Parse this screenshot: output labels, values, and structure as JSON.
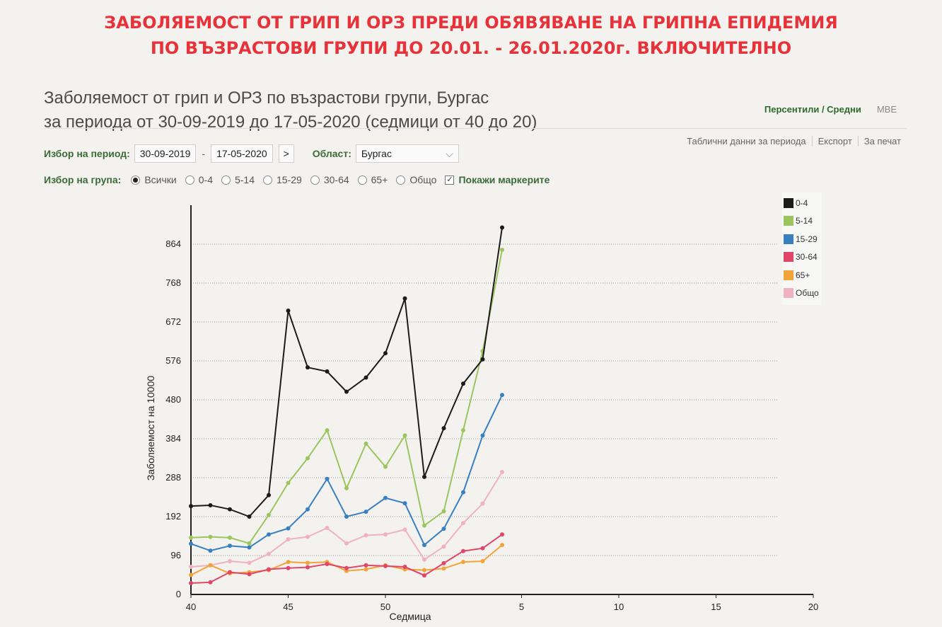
{
  "banner": {
    "line1": "ЗАБОЛЯЕМОСТ ОТ ГРИП И ОРЗ ПРЕДИ ОБЯВЯВАНЕ НА ГРИПНА ЕПИДЕМИЯ",
    "line2": "ПО ВЪЗРАСТОВИ ГРУПИ  ДО 20.01. - 26.01.2020г.  ВКЛЮЧИТЕЛНО"
  },
  "header": {
    "title_line1": "Заболяемост от грип и ОРЗ по възрастови групи, Бургас",
    "title_line2": "за периода от 30-09-2019 до 17-05-2020 (седмици от 40 до 20)",
    "percentiles_link": "Персентили / Средни",
    "mbe_link": "MBE"
  },
  "controls": {
    "period_label": "Избор на период:",
    "date_from": "30-09-2019",
    "dash": "-",
    "date_to": "17-05-2020",
    "next_button": ">",
    "region_label": "Област:",
    "region_value": "Бургас",
    "chevron": "⌵",
    "table_link": "Таблични данни за периода",
    "export_link": "Експорт",
    "print_link": "За печат"
  },
  "groups": {
    "label": "Избор на група:",
    "options": [
      "Всички",
      "0-4",
      "5-14",
      "15-29",
      "30-64",
      "65+",
      "Общо"
    ],
    "selected": 0,
    "show_markers_label": "Покажи маркерите",
    "show_markers": true,
    "checkmark": "✓"
  },
  "chart_data": {
    "type": "line",
    "title": "",
    "xlabel": "Седмица",
    "ylabel": "Заболяемост на 10000",
    "yticks": [
      0,
      96,
      192,
      288,
      384,
      480,
      576,
      672,
      768,
      864
    ],
    "ylim": [
      0,
      960
    ],
    "xtick_labels": [
      "40",
      "45",
      "50",
      "5",
      "10",
      "15",
      "20"
    ],
    "weeks": [
      40,
      41,
      42,
      43,
      44,
      45,
      46,
      47,
      48,
      49,
      50,
      51,
      52,
      1,
      2,
      3,
      4
    ],
    "grid": true,
    "legend_position": "right",
    "series": [
      {
        "name": "0-4",
        "color": "#1b1b1b",
        "values": [
          218,
          220,
          210,
          192,
          245,
          700,
          560,
          550,
          500,
          535,
          595,
          730,
          290,
          410,
          520,
          580,
          905
        ]
      },
      {
        "name": "5-14",
        "color": "#9cc560",
        "values": [
          140,
          142,
          140,
          126,
          196,
          275,
          336,
          405,
          262,
          372,
          315,
          392,
          170,
          205,
          405,
          600,
          850
        ]
      },
      {
        "name": "15-29",
        "color": "#3a80c0",
        "values": [
          125,
          108,
          120,
          116,
          148,
          163,
          210,
          285,
          192,
          204,
          238,
          225,
          122,
          162,
          252,
          392,
          492
        ]
      },
      {
        "name": "30-64",
        "color": "#e0456a",
        "values": [
          28,
          30,
          55,
          50,
          62,
          65,
          67,
          75,
          65,
          72,
          70,
          68,
          47,
          77,
          107,
          114,
          148
        ]
      },
      {
        "name": "65+",
        "color": "#f2a33a",
        "values": [
          48,
          72,
          52,
          55,
          60,
          80,
          78,
          80,
          58,
          62,
          72,
          62,
          60,
          64,
          80,
          82,
          122
        ]
      },
      {
        "name": "Общо",
        "color": "#f0b2c0",
        "values": [
          68,
          72,
          82,
          78,
          100,
          136,
          142,
          164,
          126,
          146,
          148,
          160,
          86,
          118,
          176,
          224,
          302
        ]
      }
    ]
  }
}
